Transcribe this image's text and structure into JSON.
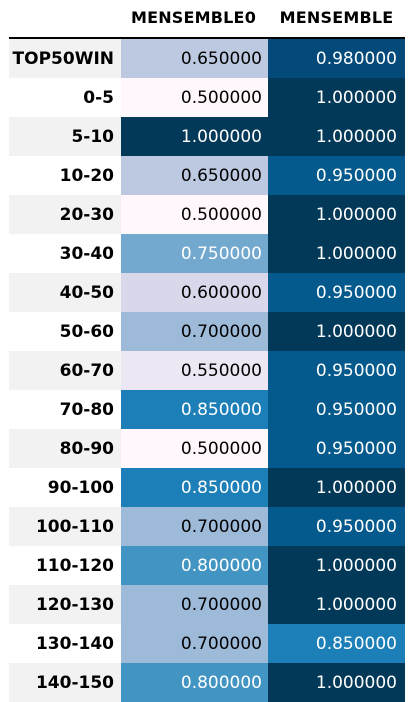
{
  "table": {
    "columns": [
      "MENSEMBLE0",
      "MENSEMBLE"
    ],
    "rows": [
      {
        "label": "TOP50WIN",
        "v1": "0.650000",
        "v2": "0.980000",
        "c1": "#bdc9e1",
        "t1": "#000000",
        "c2": "#034a7b",
        "t2": "#ffffff"
      },
      {
        "label": "0-5",
        "v1": "0.500000",
        "v2": "1.000000",
        "c1": "#fff7fb",
        "t1": "#000000",
        "c2": "#023858",
        "t2": "#ffffff"
      },
      {
        "label": "5-10",
        "v1": "1.000000",
        "v2": "1.000000",
        "c1": "#023858",
        "t1": "#ffffff",
        "c2": "#023858",
        "t2": "#ffffff"
      },
      {
        "label": "10-20",
        "v1": "0.650000",
        "v2": "0.950000",
        "c1": "#bdc9e1",
        "t1": "#000000",
        "c2": "#045a8d",
        "t2": "#ffffff"
      },
      {
        "label": "20-30",
        "v1": "0.500000",
        "v2": "1.000000",
        "c1": "#fff7fb",
        "t1": "#000000",
        "c2": "#023858",
        "t2": "#ffffff"
      },
      {
        "label": "30-40",
        "v1": "0.750000",
        "v2": "1.000000",
        "c1": "#74a9cf",
        "t1": "#ffffff",
        "c2": "#023858",
        "t2": "#ffffff"
      },
      {
        "label": "40-50",
        "v1": "0.600000",
        "v2": "0.950000",
        "c1": "#d8d8ea",
        "t1": "#000000",
        "c2": "#045a8d",
        "t2": "#ffffff"
      },
      {
        "label": "50-60",
        "v1": "0.700000",
        "v2": "1.000000",
        "c1": "#9ebad9",
        "t1": "#000000",
        "c2": "#023858",
        "t2": "#ffffff"
      },
      {
        "label": "60-70",
        "v1": "0.550000",
        "v2": "0.950000",
        "c1": "#ece7f2",
        "t1": "#000000",
        "c2": "#045a8d",
        "t2": "#ffffff"
      },
      {
        "label": "70-80",
        "v1": "0.850000",
        "v2": "0.950000",
        "c1": "#1c7fb8",
        "t1": "#ffffff",
        "c2": "#045a8d",
        "t2": "#ffffff"
      },
      {
        "label": "80-90",
        "v1": "0.500000",
        "v2": "0.950000",
        "c1": "#fff7fb",
        "t1": "#000000",
        "c2": "#045a8d",
        "t2": "#ffffff"
      },
      {
        "label": "90-100",
        "v1": "0.850000",
        "v2": "1.000000",
        "c1": "#1c7fb8",
        "t1": "#ffffff",
        "c2": "#023858",
        "t2": "#ffffff"
      },
      {
        "label": "100-110",
        "v1": "0.700000",
        "v2": "0.950000",
        "c1": "#9ebad9",
        "t1": "#000000",
        "c2": "#045a8d",
        "t2": "#ffffff"
      },
      {
        "label": "110-120",
        "v1": "0.800000",
        "v2": "1.000000",
        "c1": "#4295c3",
        "t1": "#ffffff",
        "c2": "#023858",
        "t2": "#ffffff"
      },
      {
        "label": "120-130",
        "v1": "0.700000",
        "v2": "1.000000",
        "c1": "#9ebad9",
        "t1": "#000000",
        "c2": "#023858",
        "t2": "#ffffff"
      },
      {
        "label": "130-140",
        "v1": "0.700000",
        "v2": "0.850000",
        "c1": "#9ebad9",
        "t1": "#000000",
        "c2": "#1c7fb8",
        "t2": "#ffffff"
      },
      {
        "label": "140-150",
        "v1": "0.800000",
        "v2": "1.000000",
        "c1": "#4295c3",
        "t1": "#ffffff",
        "c2": "#023858",
        "t2": "#ffffff"
      }
    ]
  }
}
